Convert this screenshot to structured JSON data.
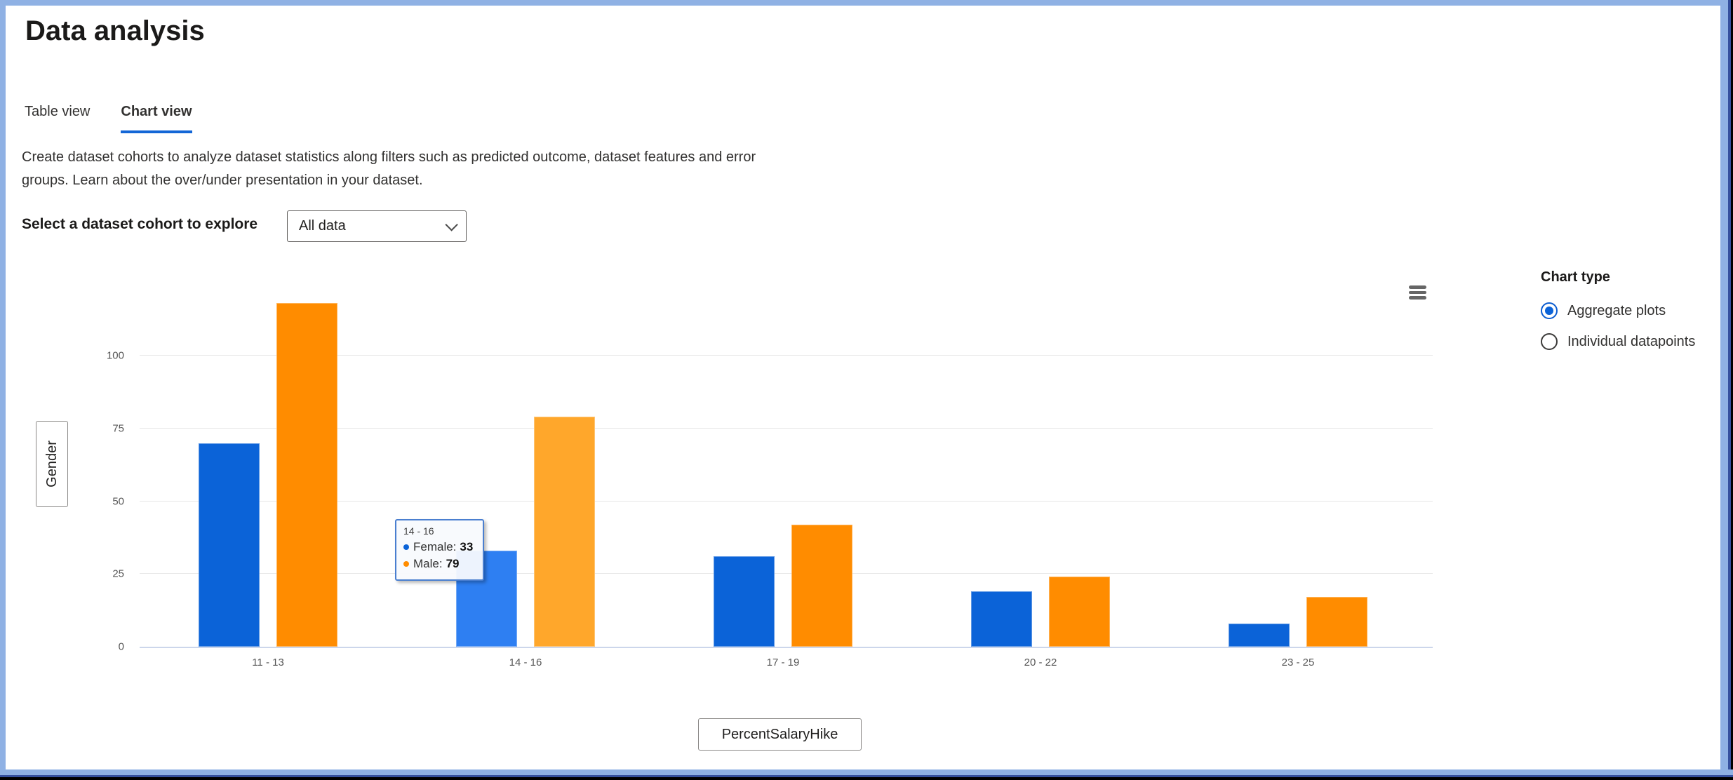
{
  "header": {
    "title": "Data analysis"
  },
  "tabs": [
    {
      "label": "Table view",
      "active": false
    },
    {
      "label": "Chart view",
      "active": true
    }
  ],
  "description_lines": [
    "Create dataset cohorts to analyze dataset statistics along filters such as predicted outcome, dataset features and error",
    "groups. Learn about the over/under presentation in your dataset."
  ],
  "cohort_selector": {
    "label": "Select a dataset cohort to explore",
    "value": "All data"
  },
  "chart_type_panel": {
    "title": "Chart type",
    "options": [
      {
        "label": "Aggregate plots",
        "selected": true
      },
      {
        "label": "Individual datapoints",
        "selected": false
      }
    ]
  },
  "colors": {
    "accent": "#1366d6",
    "tab_underline": "#1366d6",
    "radio_selected": "#0b5cd0",
    "window_frame": "#8fb1e4",
    "window_frame_shadow": "#35509e",
    "gridline": "#e7e7e7",
    "zero_line": "#ccd6eb",
    "female_bar": "#0b63d8",
    "female_bar_hover": "#2e7ff2",
    "male_bar": "#ff8c00",
    "male_bar_hover": "#ffa72b"
  },
  "chart_data": {
    "type": "bar",
    "title": "",
    "categories": [
      "11 - 13",
      "14 - 16",
      "17 - 19",
      "20 - 22",
      "23 - 25"
    ],
    "series": [
      {
        "name": "Female",
        "color": "#0b63d8",
        "hover_color": "#2e7ff2",
        "values": [
          70,
          33,
          31,
          19,
          8
        ]
      },
      {
        "name": "Male",
        "color": "#ff8c00",
        "hover_color": "#ffa72b",
        "values": [
          118,
          79,
          42,
          24,
          17
        ]
      }
    ],
    "hovered_category_index": 1,
    "yticks": [
      0,
      25,
      50,
      75,
      100
    ],
    "ylim": [
      0,
      121
    ],
    "grid": true,
    "legend_position": "none",
    "xlabel": "PercentSalaryHike",
    "ylabel": "Gender",
    "tooltip": {
      "title": "14 - 16",
      "rows": [
        {
          "label": "Female:",
          "value": "33",
          "color": "#0b63d8"
        },
        {
          "label": "Male:",
          "value": "79",
          "color": "#ff8c00"
        }
      ]
    }
  }
}
